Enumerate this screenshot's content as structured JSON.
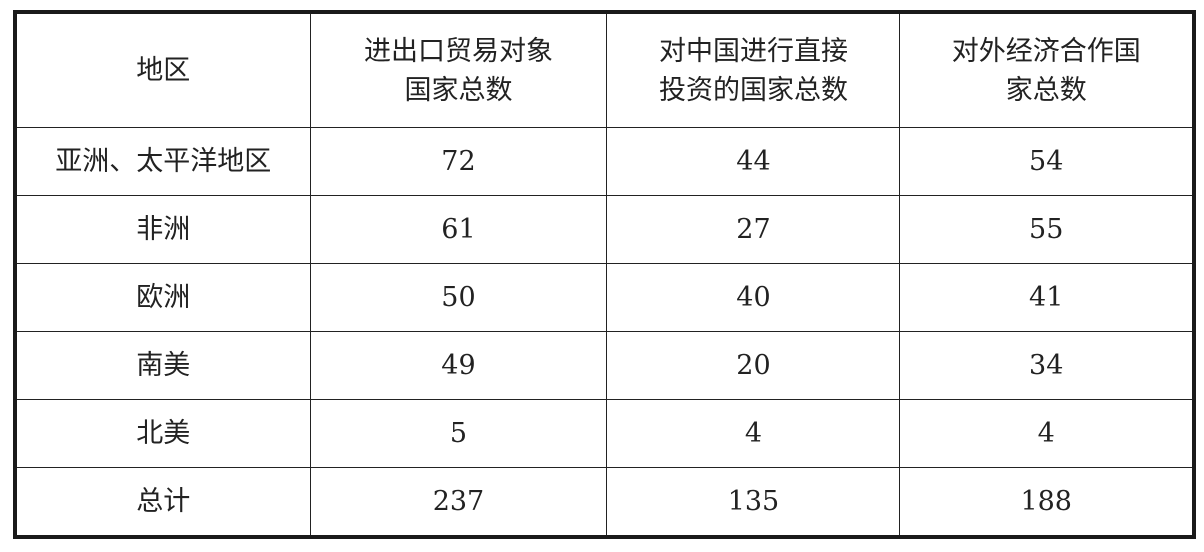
{
  "table": {
    "headers": [
      "地区",
      "进出口贸易对象国家总数",
      "对中国进行直接投资的国家总数",
      "对外经济合作国家总数"
    ],
    "header_lines": [
      [
        "地区"
      ],
      [
        "进出口贸易对象",
        "国家总数"
      ],
      [
        "对中国进行直接",
        "投资的国家总数"
      ],
      [
        "对外经济合作国",
        "家总数"
      ]
    ],
    "rows": [
      [
        "亚洲、太平洋地区",
        "72",
        "44",
        "54"
      ],
      [
        "非洲",
        "61",
        "27",
        "55"
      ],
      [
        "欧洲",
        "50",
        "40",
        "41"
      ],
      [
        "南美",
        "49",
        "20",
        "34"
      ],
      [
        "北美",
        "5",
        "4",
        "4"
      ],
      [
        "总计",
        "237",
        "135",
        "188"
      ]
    ]
  }
}
